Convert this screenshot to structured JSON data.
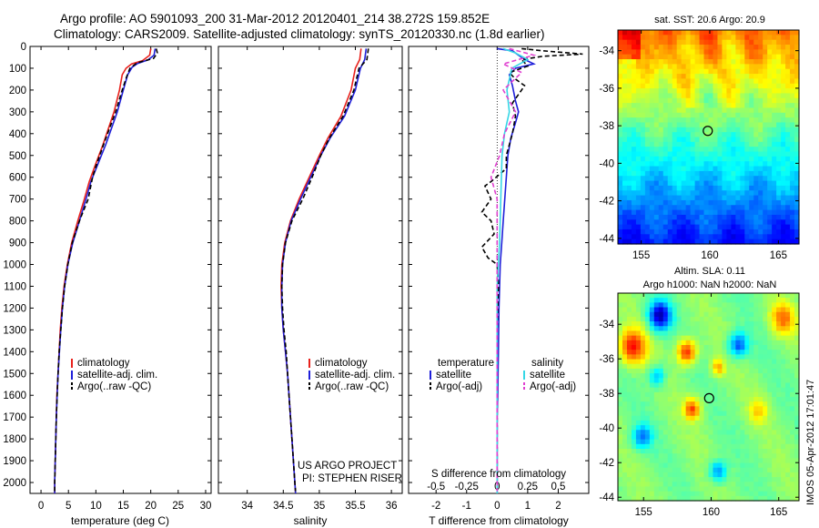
{
  "header": {
    "line1": "Argo profile: AO 5901093_200 31-Mar-2012 20120401_214 38.272S 159.852E",
    "line2": "Climatology: CARS2009. Satellite-adjusted climatology: synTS_20120330.nc (1.8d earlier)"
  },
  "side_label": "IMOS 05-Apr-2012 17:01:47",
  "project": {
    "line1": "US ARGO PROJECT",
    "line2": "PI: STEPHEN RISER"
  },
  "colors": {
    "climatology": "#e8211c",
    "satellite": "#1f1fd9",
    "argo": "#000000",
    "s_satellite": "#36d7e6",
    "s_argo": "#e040d0"
  },
  "chart_data": [
    {
      "type": "line",
      "id": "temperature",
      "xlabel": "temperature (deg C)",
      "ylabel": "",
      "xlim": [
        -2,
        31
      ],
      "ylim": [
        0,
        2050
      ],
      "y_inverted": true,
      "xticks": [
        0,
        5,
        10,
        15,
        20,
        25,
        30
      ],
      "yticks": [
        0,
        100,
        200,
        300,
        400,
        500,
        600,
        700,
        800,
        900,
        1000,
        1100,
        1200,
        1300,
        1400,
        1500,
        1600,
        1700,
        1800,
        1900,
        2000
      ],
      "legend": [
        "climatology",
        "satellite-adj. clim.",
        "Argo(..raw -QC)"
      ],
      "legend_position": "lower-middle",
      "series": [
        {
          "name": "climatology",
          "style": "solid",
          "color": "#e8211c",
          "points": [
            [
              20.0,
              10
            ],
            [
              19.8,
              40
            ],
            [
              18.5,
              65
            ],
            [
              16.5,
              80
            ],
            [
              15.5,
              100
            ],
            [
              14.8,
              130
            ],
            [
              14.3,
              200
            ],
            [
              13.3,
              300
            ],
            [
              11.3,
              450
            ],
            [
              9.8,
              550
            ],
            [
              8.8,
              620
            ],
            [
              7.9,
              700
            ],
            [
              6.7,
              800
            ],
            [
              5.6,
              900
            ],
            [
              4.8,
              1000
            ],
            [
              4.2,
              1100
            ],
            [
              3.8,
              1200
            ],
            [
              3.5,
              1300
            ],
            [
              3.3,
              1400
            ],
            [
              3.1,
              1500
            ],
            [
              2.9,
              1600
            ],
            [
              2.8,
              1700
            ],
            [
              2.7,
              1800
            ],
            [
              2.6,
              1900
            ],
            [
              2.5,
              2000
            ],
            [
              2.5,
              2050
            ]
          ]
        },
        {
          "name": "satellite-adj. clim.",
          "style": "solid",
          "color": "#1f1fd9",
          "points": [
            [
              20.8,
              10
            ],
            [
              20.6,
              40
            ],
            [
              19.5,
              62
            ],
            [
              17.6,
              78
            ],
            [
              16.6,
              95
            ],
            [
              15.8,
              130
            ],
            [
              15.0,
              200
            ],
            [
              13.9,
              300
            ],
            [
              11.8,
              450
            ],
            [
              10.2,
              550
            ],
            [
              9.1,
              620
            ],
            [
              8.2,
              700
            ],
            [
              7.0,
              800
            ],
            [
              5.8,
              900
            ],
            [
              4.9,
              1000
            ],
            [
              4.3,
              1100
            ],
            [
              3.9,
              1200
            ],
            [
              3.6,
              1300
            ],
            [
              3.35,
              1400
            ],
            [
              3.1,
              1500
            ],
            [
              2.95,
              1600
            ],
            [
              2.8,
              1700
            ],
            [
              2.7,
              1800
            ],
            [
              2.6,
              1900
            ],
            [
              2.5,
              2000
            ],
            [
              2.5,
              2050
            ]
          ]
        },
        {
          "name": "Argo(..raw -QC)",
          "style": "dashed",
          "color": "#000000",
          "points": [
            [
              21.0,
              10
            ],
            [
              21.2,
              30
            ],
            [
              20.5,
              55
            ],
            [
              17.5,
              75
            ],
            [
              16.2,
              100
            ],
            [
              15.6,
              140
            ],
            [
              14.8,
              200
            ],
            [
              13.6,
              300
            ],
            [
              11.4,
              450
            ],
            [
              10.0,
              550
            ],
            [
              9.4,
              600
            ],
            [
              8.6,
              700
            ],
            [
              7.0,
              800
            ],
            [
              5.7,
              900
            ],
            [
              4.9,
              1000
            ],
            [
              4.3,
              1100
            ],
            [
              3.9,
              1200
            ],
            [
              3.6,
              1300
            ],
            [
              3.3,
              1400
            ],
            [
              3.1,
              1500
            ],
            [
              2.95,
              1600
            ],
            [
              2.8,
              1700
            ],
            [
              2.7,
              1800
            ],
            [
              2.6,
              1900
            ],
            [
              2.5,
              2000
            ],
            [
              2.5,
              2040
            ]
          ]
        }
      ]
    },
    {
      "type": "line",
      "id": "salinity",
      "xlabel": "salinity",
      "ylabel": "",
      "xlim": [
        33.6,
        36.15
      ],
      "ylim": [
        0,
        2050
      ],
      "y_inverted": true,
      "xticks": [
        34,
        34.5,
        35,
        35.5,
        36
      ],
      "legend": [
        "climatology",
        "satellite-adj. clim.",
        "Argo(..raw -QC)"
      ],
      "legend_position": "lower-right",
      "series": [
        {
          "name": "climatology",
          "style": "solid",
          "color": "#e8211c",
          "points": [
            [
              35.58,
              10
            ],
            [
              35.56,
              60
            ],
            [
              35.5,
              100
            ],
            [
              35.44,
              200
            ],
            [
              35.3,
              320
            ],
            [
              35.12,
              420
            ],
            [
              35.0,
              500
            ],
            [
              34.86,
              600
            ],
            [
              34.72,
              700
            ],
            [
              34.6,
              800
            ],
            [
              34.52,
              900
            ],
            [
              34.48,
              1000
            ],
            [
              34.47,
              1100
            ],
            [
              34.48,
              1200
            ],
            [
              34.5,
              1300
            ],
            [
              34.53,
              1400
            ],
            [
              34.56,
              1500
            ],
            [
              34.58,
              1600
            ],
            [
              34.6,
              1700
            ],
            [
              34.62,
              1800
            ],
            [
              34.64,
              1900
            ],
            [
              34.66,
              2000
            ],
            [
              34.67,
              2050
            ]
          ]
        },
        {
          "name": "satellite-adj. clim.",
          "style": "solid",
          "color": "#1f1fd9",
          "points": [
            [
              35.65,
              10
            ],
            [
              35.63,
              60
            ],
            [
              35.57,
              100
            ],
            [
              35.5,
              200
            ],
            [
              35.35,
              320
            ],
            [
              35.15,
              420
            ],
            [
              35.02,
              500
            ],
            [
              34.88,
              600
            ],
            [
              34.74,
              700
            ],
            [
              34.61,
              800
            ],
            [
              34.53,
              900
            ],
            [
              34.49,
              1000
            ],
            [
              34.48,
              1100
            ],
            [
              34.48,
              1200
            ],
            [
              34.5,
              1300
            ],
            [
              34.53,
              1400
            ],
            [
              34.56,
              1500
            ],
            [
              34.58,
              1600
            ],
            [
              34.6,
              1700
            ],
            [
              34.62,
              1800
            ],
            [
              34.64,
              1900
            ],
            [
              34.66,
              2000
            ],
            [
              34.67,
              2050
            ]
          ]
        },
        {
          "name": "Argo(..raw -QC)",
          "style": "dashed",
          "color": "#000000",
          "points": [
            [
              35.68,
              10
            ],
            [
              35.66,
              60
            ],
            [
              35.55,
              100
            ],
            [
              35.48,
              200
            ],
            [
              35.33,
              320
            ],
            [
              35.14,
              420
            ],
            [
              35.02,
              500
            ],
            [
              34.9,
              600
            ],
            [
              34.77,
              700
            ],
            [
              34.62,
              800
            ],
            [
              34.53,
              900
            ],
            [
              34.49,
              1000
            ],
            [
              34.48,
              1100
            ],
            [
              34.49,
              1200
            ],
            [
              34.51,
              1300
            ],
            [
              34.54,
              1400
            ],
            [
              34.56,
              1500
            ],
            [
              34.58,
              1600
            ],
            [
              34.6,
              1700
            ],
            [
              34.62,
              1800
            ],
            [
              34.64,
              1900
            ],
            [
              34.66,
              2000
            ],
            [
              34.67,
              2040
            ]
          ]
        }
      ]
    },
    {
      "type": "line",
      "id": "difference",
      "xlabel": "T difference from climatology",
      "xlabel_top": "S difference from climatology",
      "ylabel": "",
      "xlim": [
        -2.9,
        3.0
      ],
      "ylim": [
        0,
        2050
      ],
      "y_inverted": true,
      "xticks": [
        -2,
        -1,
        0,
        1,
        2
      ],
      "xticks_s": [
        -0.5,
        -0.25,
        0,
        0.25,
        0.5
      ],
      "s_scale": 4,
      "legend_groups": [
        {
          "title": "temperature",
          "items": [
            "satellite",
            "Argo(-adj)"
          ]
        },
        {
          "title": "salinity",
          "items": [
            "satellite",
            "Argo(-adj)"
          ]
        }
      ],
      "legend_position": "lower-middle",
      "series": [
        {
          "name": "T satellite",
          "style": "solid",
          "color": "#1f1fd9",
          "points": [
            [
              0.0,
              10
            ],
            [
              0.5,
              20
            ],
            [
              0.7,
              40
            ],
            [
              0.9,
              60
            ],
            [
              1.2,
              80
            ],
            [
              0.6,
              100
            ],
            [
              0.4,
              130
            ],
            [
              0.5,
              180
            ],
            [
              0.6,
              250
            ],
            [
              0.7,
              300
            ],
            [
              0.6,
              350
            ],
            [
              0.45,
              420
            ],
            [
              0.35,
              500
            ],
            [
              0.3,
              600
            ],
            [
              0.25,
              700
            ],
            [
              0.2,
              800
            ],
            [
              0.15,
              900
            ],
            [
              0.1,
              1000
            ],
            [
              0.08,
              1100
            ],
            [
              0.06,
              1200
            ],
            [
              0.05,
              1300
            ],
            [
              0.04,
              1400
            ],
            [
              0.03,
              1500
            ],
            [
              0.02,
              1600
            ],
            [
              0.0,
              1700
            ],
            [
              0.0,
              2050
            ]
          ]
        },
        {
          "name": "T Argo(-adj)",
          "style": "dashed",
          "color": "#000000",
          "points": [
            [
              0.8,
              10
            ],
            [
              1.5,
              20
            ],
            [
              2.8,
              35
            ],
            [
              1.5,
              45
            ],
            [
              0.8,
              60
            ],
            [
              1.0,
              90
            ],
            [
              0.4,
              120
            ],
            [
              0.6,
              150
            ],
            [
              0.9,
              180
            ],
            [
              0.7,
              220
            ],
            [
              0.5,
              260
            ],
            [
              0.6,
              320
            ],
            [
              0.5,
              400
            ],
            [
              0.3,
              500
            ],
            [
              0.3,
              560
            ],
            [
              -0.2,
              620
            ],
            [
              -0.4,
              640
            ],
            [
              -0.2,
              700
            ],
            [
              -0.5,
              760
            ],
            [
              -0.2,
              800
            ],
            [
              -0.1,
              860
            ],
            [
              -0.5,
              920
            ],
            [
              -0.3,
              970
            ],
            [
              0.0,
              1000
            ],
            [
              0.05,
              1100
            ],
            [
              0.02,
              1200
            ],
            [
              0.0,
              1300
            ],
            [
              0.0,
              2040
            ]
          ]
        },
        {
          "name": "S satellite",
          "style": "solid",
          "color": "#36d7e6",
          "points": [
            [
              0.05,
              10
            ],
            [
              0.15,
              30
            ],
            [
              0.25,
              60
            ],
            [
              0.12,
              100
            ],
            [
              0.08,
              200
            ],
            [
              0.1,
              300
            ],
            [
              0.06,
              400
            ],
            [
              0.04,
              500
            ],
            [
              0.03,
              700
            ],
            [
              0.02,
              900
            ],
            [
              0.0,
              1100
            ],
            [
              0.0,
              2050
            ]
          ]
        },
        {
          "name": "S Argo(-adj)",
          "style": "dashed",
          "color": "#e040d0",
          "points": [
            [
              0.1,
              10
            ],
            [
              0.3,
              40
            ],
            [
              0.05,
              80
            ],
            [
              0.2,
              120
            ],
            [
              0.05,
              200
            ],
            [
              0.15,
              300
            ],
            [
              0.06,
              400
            ],
            [
              0.02,
              500
            ],
            [
              -0.05,
              600
            ],
            [
              0.0,
              700
            ],
            [
              0.0,
              2040
            ]
          ]
        }
      ]
    }
  ],
  "maps": {
    "sst": {
      "title": "sat. SST: 20.6 Argo: 20.9",
      "yticks": [
        "-34",
        "-36",
        "-38",
        "-40",
        "-42",
        "-44"
      ],
      "xticks": [
        "155",
        "160",
        "165"
      ],
      "marker": {
        "lon": 159.852,
        "lat": -38.272
      }
    },
    "sla": {
      "title_line1": "Altim. SLA: 0.11",
      "title_line2": "Argo h1000: NaN h2000: NaN",
      "yticks": [
        "-34",
        "-36",
        "-38",
        "-40",
        "-42",
        "-44"
      ],
      "xticks": [
        "155",
        "160",
        "165"
      ],
      "marker": {
        "lon": 159.852,
        "lat": -38.272
      }
    }
  }
}
